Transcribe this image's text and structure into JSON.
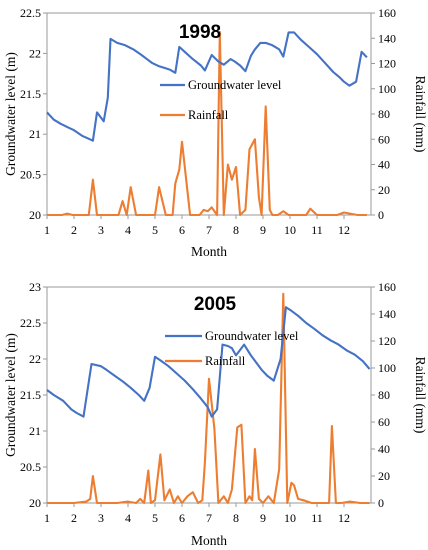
{
  "chart_data": [
    {
      "type": "line",
      "title": "1998",
      "xlabel": "Month",
      "ylabel": "Groundwater level (m)",
      "y2label": "Rainfall (mm)",
      "xlim": [
        1,
        13
      ],
      "ylim": [
        20,
        22.5
      ],
      "y2lim": [
        0,
        160
      ],
      "xticks": [
        "1",
        "2",
        "3",
        "4",
        "5",
        "6",
        "7",
        "8",
        "9",
        "10",
        "11",
        "12"
      ],
      "yticks": [
        "20",
        "20.5",
        "21",
        "21.5",
        "22",
        "22.5"
      ],
      "y2ticks": [
        "0",
        "20",
        "40",
        "60",
        "80",
        "100",
        "120",
        "140",
        "160"
      ],
      "colors": {
        "groundwater": "#4472c4",
        "rainfall": "#ed7d31"
      },
      "series": [
        {
          "name": "Groundwater level",
          "axis": "left",
          "x": [
            1.0,
            1.25,
            1.5,
            1.8,
            2.0,
            2.3,
            2.5,
            2.7,
            2.85,
            3.1,
            3.25,
            3.35,
            3.6,
            3.9,
            4.2,
            4.5,
            4.7,
            4.9,
            5.15,
            5.35,
            5.55,
            5.75,
            5.9,
            6.1,
            6.4,
            6.7,
            6.85,
            7.1,
            7.35,
            7.55,
            7.8,
            7.95,
            8.15,
            8.35,
            8.55,
            8.7,
            8.9,
            9.1,
            9.35,
            9.6,
            9.75,
            9.95,
            10.15,
            10.4,
            10.7,
            11.0,
            11.3,
            11.6,
            11.85,
            12.0,
            12.2,
            12.45,
            12.65,
            12.85
          ],
          "y": [
            21.27,
            21.18,
            21.13,
            21.08,
            21.05,
            20.98,
            20.95,
            20.92,
            21.27,
            21.16,
            21.45,
            22.18,
            22.13,
            22.1,
            22.05,
            21.98,
            21.93,
            21.88,
            21.84,
            21.82,
            21.8,
            21.76,
            22.08,
            22.02,
            21.93,
            21.85,
            21.79,
            21.98,
            21.9,
            21.86,
            21.93,
            21.9,
            21.85,
            21.78,
            21.97,
            22.05,
            22.13,
            22.13,
            22.1,
            22.05,
            21.96,
            22.26,
            22.26,
            22.17,
            22.08,
            21.99,
            21.88,
            21.77,
            21.7,
            21.65,
            21.6,
            21.65,
            22.02,
            21.95
          ]
        },
        {
          "name": "Rainfall",
          "axis": "right",
          "x": [
            1.0,
            1.3,
            1.55,
            1.75,
            1.95,
            2.3,
            2.45,
            2.55,
            2.7,
            2.85,
            3.0,
            3.5,
            3.65,
            3.8,
            3.95,
            4.1,
            4.3,
            4.6,
            4.85,
            5.0,
            5.15,
            5.4,
            5.65,
            5.75,
            5.9,
            6.0,
            6.3,
            6.5,
            6.65,
            6.8,
            6.95,
            7.1,
            7.3,
            7.4,
            7.55,
            7.7,
            7.85,
            8.0,
            8.15,
            8.35,
            8.5,
            8.7,
            8.85,
            8.95,
            9.1,
            9.25,
            9.35,
            9.55,
            9.75,
            9.95,
            10.15,
            10.3,
            10.5,
            10.6,
            10.75,
            11.0,
            11.3,
            11.6,
            11.75,
            12.0,
            12.5,
            12.85
          ],
          "y": [
            0,
            0,
            0,
            1,
            0,
            0,
            0,
            0,
            28,
            0,
            0,
            0,
            0,
            11,
            0,
            22,
            0,
            0,
            0,
            0,
            22,
            0,
            0,
            25,
            36,
            58,
            0,
            0,
            0,
            4,
            3,
            6,
            0,
            145,
            0,
            40,
            28,
            38,
            0,
            4,
            52,
            60,
            14,
            0,
            86,
            4,
            0,
            0,
            3,
            0,
            0,
            0,
            0,
            0,
            5,
            0,
            0,
            0,
            0,
            2,
            0,
            0
          ]
        }
      ]
    },
    {
      "type": "line",
      "title": "2005",
      "xlabel": "Month",
      "ylabel": "Groundwater level (m)",
      "y2label": "Rainfall (mm)",
      "xlim": [
        1,
        13
      ],
      "ylim": [
        20,
        23
      ],
      "y2lim": [
        0,
        160
      ],
      "xticks": [
        "1",
        "2",
        "3",
        "4",
        "5",
        "6",
        "7",
        "8",
        "9",
        "10",
        "11",
        "12"
      ],
      "yticks": [
        "20",
        "20.5",
        "21",
        "21.5",
        "22",
        "22.5",
        "23"
      ],
      "y2ticks": [
        "0",
        "20",
        "40",
        "60",
        "80",
        "100",
        "120",
        "140",
        "160"
      ],
      "colors": {
        "groundwater": "#4472c4",
        "rainfall": "#ed7d31"
      },
      "series": [
        {
          "name": "Groundwater level",
          "axis": "left",
          "x": [
            1.0,
            1.25,
            1.6,
            1.9,
            2.1,
            2.35,
            2.65,
            3.0,
            3.2,
            3.5,
            3.8,
            4.1,
            4.4,
            4.6,
            4.8,
            5.0,
            5.2,
            5.5,
            5.8,
            6.1,
            6.4,
            6.7,
            6.95,
            7.1,
            7.3,
            7.5,
            7.7,
            7.85,
            8.0,
            8.3,
            8.55,
            8.75,
            8.95,
            9.15,
            9.4,
            9.65,
            9.85,
            10.05,
            10.3,
            10.6,
            10.9,
            11.2,
            11.5,
            11.8,
            12.1,
            12.4,
            12.7,
            12.95
          ],
          "y": [
            21.57,
            21.5,
            21.42,
            21.3,
            21.25,
            21.2,
            21.93,
            21.9,
            21.85,
            21.77,
            21.69,
            21.6,
            21.5,
            21.42,
            21.6,
            22.03,
            21.98,
            21.9,
            21.8,
            21.7,
            21.58,
            21.45,
            21.33,
            21.2,
            21.3,
            22.2,
            22.18,
            22.15,
            22.05,
            22.2,
            22.05,
            21.95,
            21.85,
            21.77,
            21.7,
            22.0,
            22.72,
            22.67,
            22.6,
            22.5,
            22.42,
            22.33,
            22.26,
            22.2,
            22.12,
            22.06,
            21.97,
            21.86
          ]
        },
        {
          "name": "Rainfall",
          "axis": "right",
          "x": [
            1.0,
            1.5,
            2.0,
            2.45,
            2.6,
            2.7,
            2.85,
            3.2,
            3.6,
            4.0,
            4.3,
            4.45,
            4.6,
            4.75,
            4.85,
            5.0,
            5.2,
            5.35,
            5.55,
            5.7,
            5.85,
            6.0,
            6.2,
            6.4,
            6.6,
            6.75,
            6.85,
            7.0,
            7.2,
            7.35,
            7.55,
            7.7,
            7.85,
            8.05,
            8.2,
            8.35,
            8.5,
            8.6,
            8.7,
            8.85,
            9.0,
            9.2,
            9.4,
            9.6,
            9.75,
            9.9,
            10.05,
            10.15,
            10.3,
            10.5,
            10.8,
            11.0,
            11.3,
            11.45,
            11.55,
            11.7,
            11.9,
            12.2,
            12.6,
            12.95
          ],
          "y": [
            0,
            0,
            0,
            1,
            3,
            20,
            0,
            0,
            0,
            1,
            0,
            3,
            0,
            24,
            0,
            2,
            36,
            2,
            10,
            0,
            5,
            0,
            5,
            8,
            0,
            2,
            30,
            92,
            55,
            0,
            5,
            0,
            10,
            56,
            58,
            0,
            5,
            2,
            40,
            3,
            0,
            5,
            0,
            25,
            155,
            0,
            15,
            13,
            3,
            2,
            0,
            0,
            0,
            0,
            57,
            0,
            0,
            1,
            0,
            0
          ]
        }
      ]
    }
  ]
}
